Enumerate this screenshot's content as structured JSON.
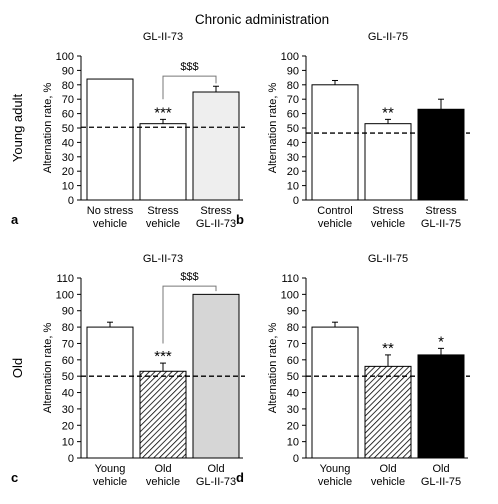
{
  "title": "Chronic administration",
  "row_labels": [
    "Young adult",
    "Old"
  ],
  "chart_data": [
    {
      "type": "bar",
      "panel_label": "a",
      "title": "GL-II-73",
      "ylabel": "Alternation rate, %",
      "ylim": [
        0,
        100
      ],
      "yticks": [
        0,
        10,
        20,
        30,
        40,
        50,
        60,
        70,
        80,
        90,
        100
      ],
      "categories": [
        [
          "No stress",
          "vehicle"
        ],
        [
          "Stress",
          "vehicle"
        ],
        [
          "Stress",
          "GL-II-73"
        ]
      ],
      "values": [
        84,
        53,
        75
      ],
      "errors": [
        0,
        3,
        4
      ],
      "fills": [
        "white",
        "white",
        "lightgray"
      ],
      "reference_line": 50.5,
      "annotations": [
        {
          "bar": 1,
          "text": "***"
        }
      ],
      "bracket": {
        "from": 1,
        "to": 2,
        "y": 86,
        "text": "$$$"
      }
    },
    {
      "type": "bar",
      "panel_label": "b",
      "title": "GL-II-75",
      "ylabel": "Alternation rate, %",
      "ylim": [
        0,
        100
      ],
      "yticks": [
        0,
        10,
        20,
        30,
        40,
        50,
        60,
        70,
        80,
        90,
        100
      ],
      "categories": [
        [
          "Control",
          "vehicle"
        ],
        [
          "Stress",
          "vehicle"
        ],
        [
          "Stress",
          "GL-II-75"
        ]
      ],
      "values": [
        80,
        53,
        63
      ],
      "errors": [
        3,
        3,
        7
      ],
      "fills": [
        "white",
        "white",
        "black"
      ],
      "reference_line": 46.5,
      "annotations": [
        {
          "bar": 1,
          "text": "**"
        }
      ],
      "bracket": null
    },
    {
      "type": "bar",
      "panel_label": "c",
      "title": "GL-II-73",
      "ylabel": "Alternation rate, %",
      "ylim": [
        0,
        110
      ],
      "yticks": [
        0,
        10,
        20,
        30,
        40,
        50,
        60,
        70,
        80,
        90,
        100,
        110
      ],
      "categories": [
        [
          "Young",
          "vehicle"
        ],
        [
          "Old",
          "vehicle"
        ],
        [
          "Old",
          "GL-II-73"
        ]
      ],
      "values": [
        80,
        53,
        100
      ],
      "errors": [
        3,
        5,
        0
      ],
      "fills": [
        "white",
        "hatched",
        "lightgray"
      ],
      "reference_line": 50,
      "annotations": [
        {
          "bar": 1,
          "text": "***"
        }
      ],
      "bracket": {
        "from": 1,
        "to": 2,
        "y": 105,
        "text": "$$$"
      }
    },
    {
      "type": "bar",
      "panel_label": "d",
      "title": "GL-II-75",
      "ylabel": "Alternation rate, %",
      "ylim": [
        0,
        110
      ],
      "yticks": [
        0,
        10,
        20,
        30,
        40,
        50,
        60,
        70,
        80,
        90,
        100,
        110
      ],
      "categories": [
        [
          "Young",
          "vehicle"
        ],
        [
          "Old",
          "vehicle"
        ],
        [
          "Old",
          "GL-II-75"
        ]
      ],
      "values": [
        80,
        56,
        63
      ],
      "errors": [
        3,
        7,
        4
      ],
      "fills": [
        "white",
        "hatched",
        "black"
      ],
      "reference_line": 50,
      "annotations": [
        {
          "bar": 1,
          "text": "**"
        },
        {
          "bar": 2,
          "text": "*"
        }
      ],
      "bracket": null
    }
  ]
}
